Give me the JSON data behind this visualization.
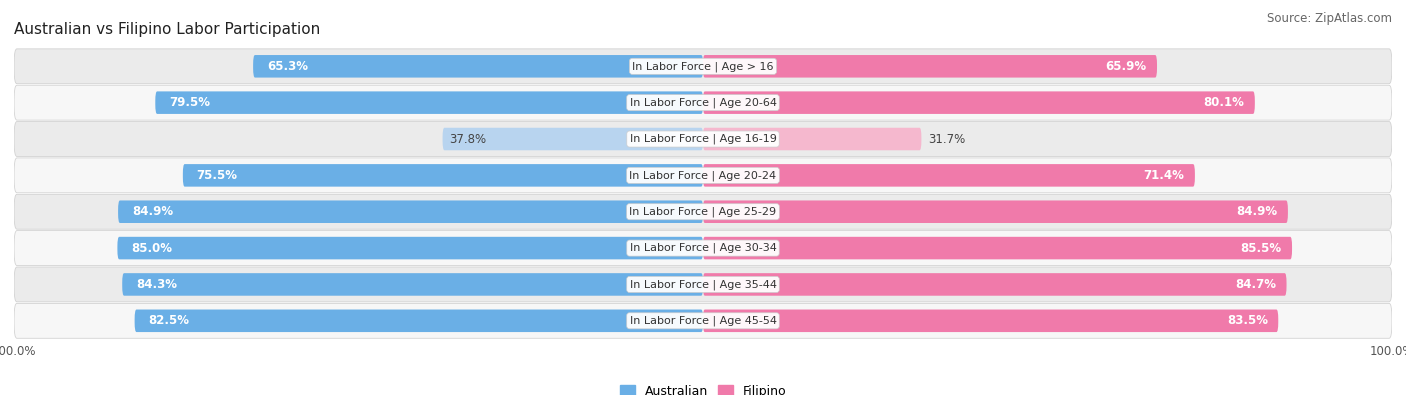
{
  "title": "Australian vs Filipino Labor Participation",
  "source": "Source: ZipAtlas.com",
  "categories": [
    "In Labor Force | Age > 16",
    "In Labor Force | Age 20-64",
    "In Labor Force | Age 16-19",
    "In Labor Force | Age 20-24",
    "In Labor Force | Age 25-29",
    "In Labor Force | Age 30-34",
    "In Labor Force | Age 35-44",
    "In Labor Force | Age 45-54"
  ],
  "australian_values": [
    65.3,
    79.5,
    37.8,
    75.5,
    84.9,
    85.0,
    84.3,
    82.5
  ],
  "filipino_values": [
    65.9,
    80.1,
    31.7,
    71.4,
    84.9,
    85.5,
    84.7,
    83.5
  ],
  "australian_color": "#6aafe6",
  "australian_light_color": "#b8d4ef",
  "filipino_color": "#f07aaa",
  "filipino_light_color": "#f5b8ce",
  "row_bg_even": "#ebebeb",
  "row_bg_odd": "#f7f7f7",
  "max_value": 100.0,
  "bar_height": 0.62,
  "label_fontsize": 8.5,
  "title_fontsize": 11,
  "legend_fontsize": 9,
  "source_fontsize": 8.5,
  "category_fontsize": 8.0
}
